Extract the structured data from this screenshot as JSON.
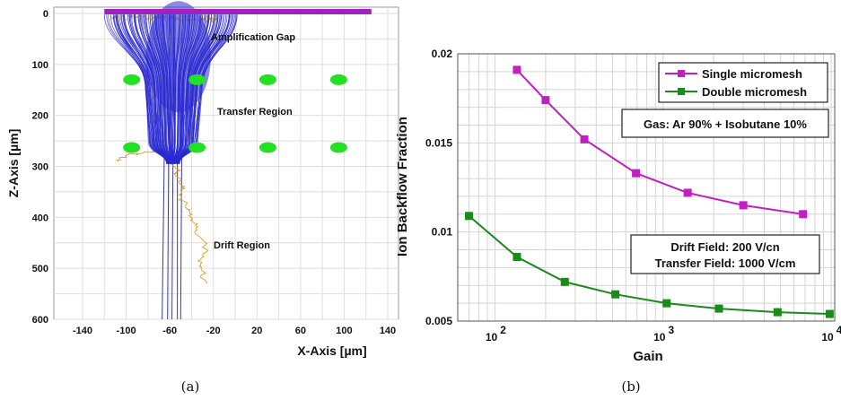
{
  "chart_data": [
    {
      "type": "scatter",
      "panel_caption": "(a)",
      "xlabel": "X-Axis [µm]",
      "ylabel": "Z-Axis [µm]",
      "xlim": [
        -150,
        160
      ],
      "ylim": [
        600,
        -10
      ],
      "x_ticks": [
        "-140",
        "-100",
        "-60",
        "-20",
        "20",
        "60",
        "100",
        "140"
      ],
      "y_ticks": [
        "0",
        "100",
        "200",
        "300",
        "400",
        "500",
        "600"
      ],
      "grid": true,
      "region_labels": [
        "Amplification Gap",
        "Transfer Region",
        "Drift Region"
      ],
      "mesh": {
        "x_from": -120,
        "x_to": 125,
        "z": 0,
        "color": "#a020c0"
      },
      "wires_row1": {
        "z": 130,
        "x": [
          -95,
          -35,
          30,
          95
        ],
        "color": "#22e022"
      },
      "wires_row2": {
        "z": 263,
        "x": [
          -95,
          -35,
          30,
          95
        ],
        "color": "#22e022"
      },
      "electron_color": "#2a2ad0",
      "ion_color": "#e0a020"
    },
    {
      "type": "line",
      "panel_caption": "(b)",
      "xlabel": "Gain",
      "ylabel": "Ion Backflow Fraction",
      "xscale": "log",
      "xlim": [
        60,
        10500
      ],
      "ylim": [
        0.005,
        0.02
      ],
      "x_ticks": [
        "10",
        "10",
        "10"
      ],
      "x_tick_exponents": [
        "2",
        "3",
        "4"
      ],
      "y_ticks": [
        "0.005",
        "0.01",
        "0.015",
        "0.02"
      ],
      "grid": true,
      "legend_position": "top-right",
      "annotations": [
        "Gas: Ar 90% + Isobutane 10%",
        "Drift Field: 200 V/cn",
        "Transfer Field: 1000 V/cm"
      ],
      "series": [
        {
          "name": "Single micromesh",
          "color": "#c21fc2",
          "x": [
            135,
            200,
            340,
            690,
            1400,
            3000,
            6800
          ],
          "y": [
            0.0191,
            0.0174,
            0.0152,
            0.0133,
            0.0122,
            0.0115,
            0.011
          ]
        },
        {
          "name": "Double micromesh",
          "color": "#1a8a1a",
          "x": [
            70,
            135,
            260,
            520,
            1050,
            2150,
            4800,
            9800
          ],
          "y": [
            0.0109,
            0.0086,
            0.0072,
            0.0065,
            0.006,
            0.0057,
            0.0055,
            0.0054
          ]
        }
      ]
    }
  ]
}
